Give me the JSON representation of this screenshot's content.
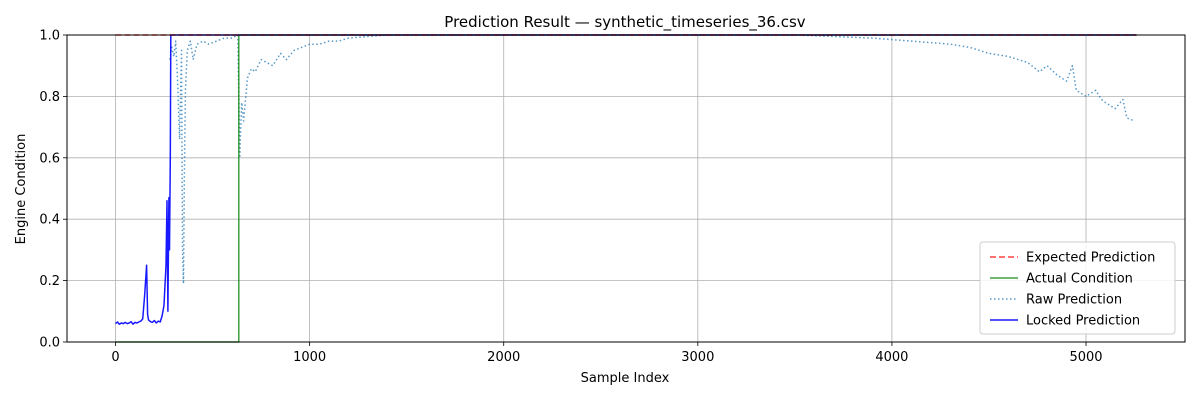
{
  "chart_data": {
    "type": "line",
    "title": "Prediction Result — synthetic_timeseries_36.csv",
    "xlabel": "Sample Index",
    "ylabel": "Engine Condition",
    "xlim": [
      -250,
      5510
    ],
    "ylim": [
      0.0,
      1.0
    ],
    "grid": true,
    "legend_position": "lower-right",
    "x_ticks": [
      0,
      1000,
      2000,
      3000,
      4000,
      5000
    ],
    "x_tick_labels": [
      "0",
      "1000",
      "2000",
      "3000",
      "4000",
      "5000"
    ],
    "y_ticks": [
      0.0,
      0.2,
      0.4,
      0.6,
      0.8,
      1.0
    ],
    "y_tick_labels": [
      "0.0",
      "0.2",
      "0.4",
      "0.6",
      "0.8",
      "1.0"
    ],
    "series": [
      {
        "name": "Expected Prediction",
        "color": "#ff0000",
        "style": "dashed",
        "points": [
          [
            0,
            1.0
          ],
          [
            5260,
            1.0
          ]
        ]
      },
      {
        "name": "Actual Condition",
        "color": "#008000",
        "style": "solid",
        "points": [
          [
            0,
            0.0
          ],
          [
            635,
            0.0
          ],
          [
            635,
            1.0
          ],
          [
            5260,
            1.0
          ]
        ]
      },
      {
        "name": "Raw Prediction",
        "color": "#1f77b4",
        "style": "dotted",
        "points": [
          [
            280,
            0.92
          ],
          [
            290,
            0.96
          ],
          [
            300,
            0.93
          ],
          [
            310,
            0.98
          ],
          [
            320,
            0.85
          ],
          [
            330,
            0.66
          ],
          [
            340,
            0.95
          ],
          [
            345,
            0.3
          ],
          [
            350,
            0.19
          ],
          [
            355,
            0.55
          ],
          [
            360,
            0.82
          ],
          [
            370,
            0.95
          ],
          [
            385,
            0.98
          ],
          [
            400,
            0.92
          ],
          [
            420,
            0.97
          ],
          [
            450,
            0.98
          ],
          [
            480,
            0.97
          ],
          [
            520,
            0.98
          ],
          [
            560,
            0.99
          ],
          [
            600,
            0.99
          ],
          [
            630,
            1.0
          ],
          [
            640,
            0.6
          ],
          [
            650,
            0.78
          ],
          [
            660,
            0.72
          ],
          [
            680,
            0.86
          ],
          [
            700,
            0.89
          ],
          [
            720,
            0.88
          ],
          [
            750,
            0.92
          ],
          [
            780,
            0.91
          ],
          [
            810,
            0.9
          ],
          [
            850,
            0.94
          ],
          [
            880,
            0.92
          ],
          [
            920,
            0.95
          ],
          [
            960,
            0.96
          ],
          [
            1000,
            0.97
          ],
          [
            1050,
            0.97
          ],
          [
            1100,
            0.98
          ],
          [
            1150,
            0.98
          ],
          [
            1200,
            0.99
          ],
          [
            1300,
            0.995
          ],
          [
            1400,
            1.0
          ],
          [
            1600,
            1.0
          ],
          [
            2000,
            1.0
          ],
          [
            2500,
            1.0
          ],
          [
            3000,
            1.0
          ],
          [
            3500,
            1.0
          ],
          [
            3700,
            0.995
          ],
          [
            3900,
            0.99
          ],
          [
            4100,
            0.98
          ],
          [
            4300,
            0.97
          ],
          [
            4400,
            0.96
          ],
          [
            4500,
            0.94
          ],
          [
            4600,
            0.93
          ],
          [
            4700,
            0.91
          ],
          [
            4760,
            0.88
          ],
          [
            4800,
            0.9
          ],
          [
            4850,
            0.87
          ],
          [
            4900,
            0.85
          ],
          [
            4930,
            0.9
          ],
          [
            4950,
            0.82
          ],
          [
            5000,
            0.8
          ],
          [
            5050,
            0.82
          ],
          [
            5080,
            0.79
          ],
          [
            5100,
            0.78
          ],
          [
            5150,
            0.76
          ],
          [
            5190,
            0.79
          ],
          [
            5210,
            0.73
          ],
          [
            5250,
            0.72
          ]
        ]
      },
      {
        "name": "Locked Prediction",
        "color": "#0000ff",
        "style": "solid",
        "points": [
          [
            0,
            0.06
          ],
          [
            10,
            0.065
          ],
          [
            20,
            0.058
          ],
          [
            30,
            0.062
          ],
          [
            40,
            0.06
          ],
          [
            50,
            0.064
          ],
          [
            60,
            0.06
          ],
          [
            70,
            0.062
          ],
          [
            80,
            0.066
          ],
          [
            90,
            0.058
          ],
          [
            100,
            0.064
          ],
          [
            110,
            0.062
          ],
          [
            120,
            0.065
          ],
          [
            130,
            0.068
          ],
          [
            140,
            0.075
          ],
          [
            150,
            0.15
          ],
          [
            160,
            0.25
          ],
          [
            165,
            0.09
          ],
          [
            170,
            0.072
          ],
          [
            180,
            0.066
          ],
          [
            190,
            0.064
          ],
          [
            200,
            0.07
          ],
          [
            210,
            0.062
          ],
          [
            220,
            0.068
          ],
          [
            230,
            0.065
          ],
          [
            240,
            0.085
          ],
          [
            250,
            0.12
          ],
          [
            260,
            0.25
          ],
          [
            265,
            0.46
          ],
          [
            270,
            0.1
          ],
          [
            275,
            0.47
          ],
          [
            278,
            0.3
          ],
          [
            282,
            0.6
          ],
          [
            285,
            1.0
          ],
          [
            400,
            1.0
          ],
          [
            1000,
            1.0
          ],
          [
            3000,
            1.0
          ],
          [
            5260,
            1.0
          ]
        ]
      }
    ]
  }
}
